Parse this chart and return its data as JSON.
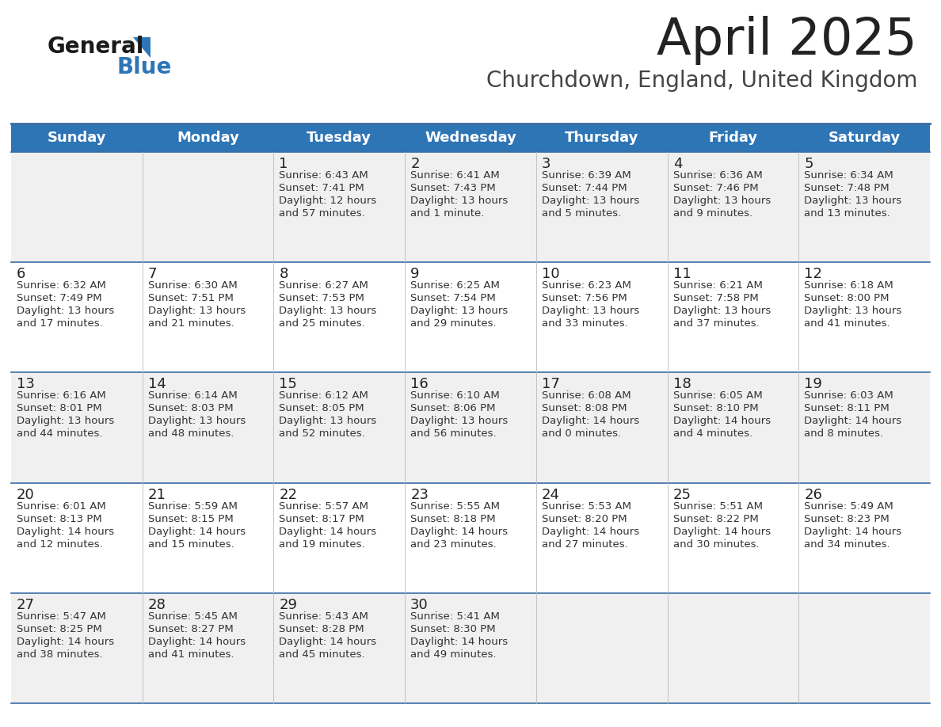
{
  "title": "April 2025",
  "subtitle": "Churchdown, England, United Kingdom",
  "header_bg": "#2E75B6",
  "header_text_color": "#FFFFFF",
  "weekdays": [
    "Sunday",
    "Monday",
    "Tuesday",
    "Wednesday",
    "Thursday",
    "Friday",
    "Saturday"
  ],
  "row_bg_even": "#FFFFFF",
  "row_bg_odd": "#F0F0F0",
  "cell_border_color": "#3A6EA5",
  "day_number_color": "#222222",
  "info_text_color": "#333333",
  "title_color": "#222222",
  "subtitle_color": "#444444",
  "logo_color1": "#1a1a1a",
  "logo_color2": "#2E75B6",
  "days": [
    {
      "date": 1,
      "col": 2,
      "row": 0,
      "sunrise": "6:43 AM",
      "sunset": "7:41 PM",
      "daylight_h": "12 hours",
      "daylight_m": "57 minutes"
    },
    {
      "date": 2,
      "col": 3,
      "row": 0,
      "sunrise": "6:41 AM",
      "sunset": "7:43 PM",
      "daylight_h": "13 hours",
      "daylight_m": "1 minute"
    },
    {
      "date": 3,
      "col": 4,
      "row": 0,
      "sunrise": "6:39 AM",
      "sunset": "7:44 PM",
      "daylight_h": "13 hours",
      "daylight_m": "5 minutes"
    },
    {
      "date": 4,
      "col": 5,
      "row": 0,
      "sunrise": "6:36 AM",
      "sunset": "7:46 PM",
      "daylight_h": "13 hours",
      "daylight_m": "9 minutes"
    },
    {
      "date": 5,
      "col": 6,
      "row": 0,
      "sunrise": "6:34 AM",
      "sunset": "7:48 PM",
      "daylight_h": "13 hours",
      "daylight_m": "13 minutes"
    },
    {
      "date": 6,
      "col": 0,
      "row": 1,
      "sunrise": "6:32 AM",
      "sunset": "7:49 PM",
      "daylight_h": "13 hours",
      "daylight_m": "17 minutes"
    },
    {
      "date": 7,
      "col": 1,
      "row": 1,
      "sunrise": "6:30 AM",
      "sunset": "7:51 PM",
      "daylight_h": "13 hours",
      "daylight_m": "21 minutes"
    },
    {
      "date": 8,
      "col": 2,
      "row": 1,
      "sunrise": "6:27 AM",
      "sunset": "7:53 PM",
      "daylight_h": "13 hours",
      "daylight_m": "25 minutes"
    },
    {
      "date": 9,
      "col": 3,
      "row": 1,
      "sunrise": "6:25 AM",
      "sunset": "7:54 PM",
      "daylight_h": "13 hours",
      "daylight_m": "29 minutes"
    },
    {
      "date": 10,
      "col": 4,
      "row": 1,
      "sunrise": "6:23 AM",
      "sunset": "7:56 PM",
      "daylight_h": "13 hours",
      "daylight_m": "33 minutes"
    },
    {
      "date": 11,
      "col": 5,
      "row": 1,
      "sunrise": "6:21 AM",
      "sunset": "7:58 PM",
      "daylight_h": "13 hours",
      "daylight_m": "37 minutes"
    },
    {
      "date": 12,
      "col": 6,
      "row": 1,
      "sunrise": "6:18 AM",
      "sunset": "8:00 PM",
      "daylight_h": "13 hours",
      "daylight_m": "41 minutes"
    },
    {
      "date": 13,
      "col": 0,
      "row": 2,
      "sunrise": "6:16 AM",
      "sunset": "8:01 PM",
      "daylight_h": "13 hours",
      "daylight_m": "44 minutes"
    },
    {
      "date": 14,
      "col": 1,
      "row": 2,
      "sunrise": "6:14 AM",
      "sunset": "8:03 PM",
      "daylight_h": "13 hours",
      "daylight_m": "48 minutes"
    },
    {
      "date": 15,
      "col": 2,
      "row": 2,
      "sunrise": "6:12 AM",
      "sunset": "8:05 PM",
      "daylight_h": "13 hours",
      "daylight_m": "52 minutes"
    },
    {
      "date": 16,
      "col": 3,
      "row": 2,
      "sunrise": "6:10 AM",
      "sunset": "8:06 PM",
      "daylight_h": "13 hours",
      "daylight_m": "56 minutes"
    },
    {
      "date": 17,
      "col": 4,
      "row": 2,
      "sunrise": "6:08 AM",
      "sunset": "8:08 PM",
      "daylight_h": "14 hours",
      "daylight_m": "0 minutes"
    },
    {
      "date": 18,
      "col": 5,
      "row": 2,
      "sunrise": "6:05 AM",
      "sunset": "8:10 PM",
      "daylight_h": "14 hours",
      "daylight_m": "4 minutes"
    },
    {
      "date": 19,
      "col": 6,
      "row": 2,
      "sunrise": "6:03 AM",
      "sunset": "8:11 PM",
      "daylight_h": "14 hours",
      "daylight_m": "8 minutes"
    },
    {
      "date": 20,
      "col": 0,
      "row": 3,
      "sunrise": "6:01 AM",
      "sunset": "8:13 PM",
      "daylight_h": "14 hours",
      "daylight_m": "12 minutes"
    },
    {
      "date": 21,
      "col": 1,
      "row": 3,
      "sunrise": "5:59 AM",
      "sunset": "8:15 PM",
      "daylight_h": "14 hours",
      "daylight_m": "15 minutes"
    },
    {
      "date": 22,
      "col": 2,
      "row": 3,
      "sunrise": "5:57 AM",
      "sunset": "8:17 PM",
      "daylight_h": "14 hours",
      "daylight_m": "19 minutes"
    },
    {
      "date": 23,
      "col": 3,
      "row": 3,
      "sunrise": "5:55 AM",
      "sunset": "8:18 PM",
      "daylight_h": "14 hours",
      "daylight_m": "23 minutes"
    },
    {
      "date": 24,
      "col": 4,
      "row": 3,
      "sunrise": "5:53 AM",
      "sunset": "8:20 PM",
      "daylight_h": "14 hours",
      "daylight_m": "27 minutes"
    },
    {
      "date": 25,
      "col": 5,
      "row": 3,
      "sunrise": "5:51 AM",
      "sunset": "8:22 PM",
      "daylight_h": "14 hours",
      "daylight_m": "30 minutes"
    },
    {
      "date": 26,
      "col": 6,
      "row": 3,
      "sunrise": "5:49 AM",
      "sunset": "8:23 PM",
      "daylight_h": "14 hours",
      "daylight_m": "34 minutes"
    },
    {
      "date": 27,
      "col": 0,
      "row": 4,
      "sunrise": "5:47 AM",
      "sunset": "8:25 PM",
      "daylight_h": "14 hours",
      "daylight_m": "38 minutes"
    },
    {
      "date": 28,
      "col": 1,
      "row": 4,
      "sunrise": "5:45 AM",
      "sunset": "8:27 PM",
      "daylight_h": "14 hours",
      "daylight_m": "41 minutes"
    },
    {
      "date": 29,
      "col": 2,
      "row": 4,
      "sunrise": "5:43 AM",
      "sunset": "8:28 PM",
      "daylight_h": "14 hours",
      "daylight_m": "45 minutes"
    },
    {
      "date": 30,
      "col": 3,
      "row": 4,
      "sunrise": "5:41 AM",
      "sunset": "8:30 PM",
      "daylight_h": "14 hours",
      "daylight_m": "49 minutes"
    }
  ]
}
